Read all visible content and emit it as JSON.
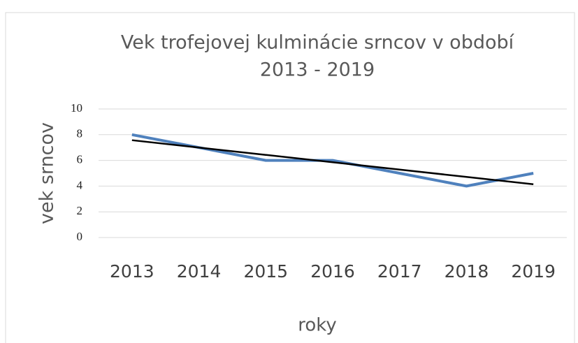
{
  "chart_data": {
    "type": "line",
    "title": [
      "Vek trofejovej kulminácie srncov v období",
      "2013 - 2019"
    ],
    "xlabel": "roky",
    "ylabel": "vek srncov",
    "categories": [
      "2013",
      "2014",
      "2015",
      "2016",
      "2017",
      "2018",
      "2019"
    ],
    "series": [
      {
        "color": "#4f81bd",
        "values": [
          8,
          7,
          6,
          6,
          5,
          4,
          5
        ]
      },
      {
        "color": "#000000",
        "values": [
          7.571,
          7.0,
          6.429,
          5.857,
          5.286,
          4.714,
          4.143
        ]
      }
    ],
    "ylim": [
      0,
      10
    ],
    "yticks": [
      0,
      2,
      4,
      6,
      8,
      10
    ],
    "grid": true
  }
}
